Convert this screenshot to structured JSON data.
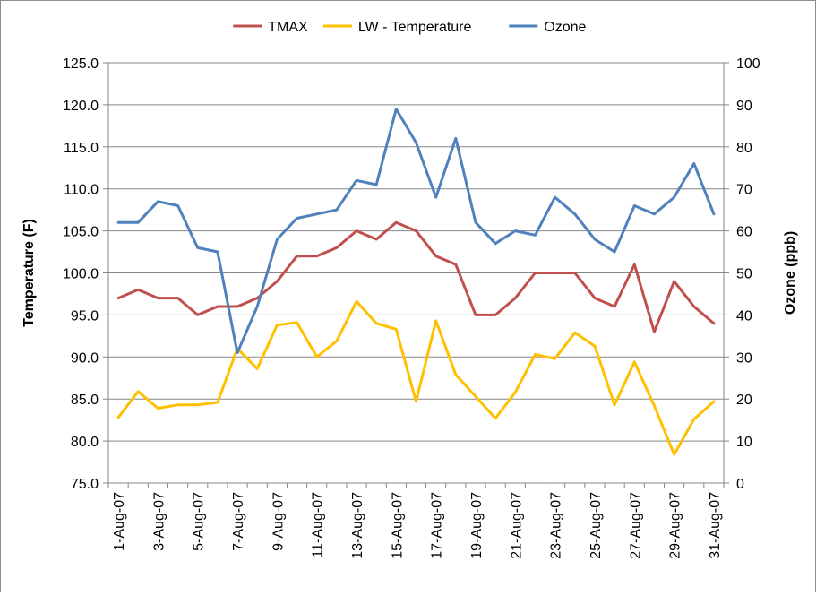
{
  "chart_data": {
    "type": "line",
    "title": "",
    "x": [
      "1-Aug-07",
      "2-Aug-07",
      "3-Aug-07",
      "4-Aug-07",
      "5-Aug-07",
      "6-Aug-07",
      "7-Aug-07",
      "8-Aug-07",
      "9-Aug-07",
      "10-Aug-07",
      "11-Aug-07",
      "12-Aug-07",
      "13-Aug-07",
      "14-Aug-07",
      "15-Aug-07",
      "16-Aug-07",
      "17-Aug-07",
      "18-Aug-07",
      "19-Aug-07",
      "20-Aug-07",
      "21-Aug-07",
      "22-Aug-07",
      "23-Aug-07",
      "24-Aug-07",
      "25-Aug-07",
      "26-Aug-07",
      "27-Aug-07",
      "28-Aug-07",
      "29-Aug-07",
      "30-Aug-07",
      "31-Aug-07"
    ],
    "x_tick_labels": [
      "1-Aug-07",
      "3-Aug-07",
      "5-Aug-07",
      "7-Aug-07",
      "9-Aug-07",
      "11-Aug-07",
      "13-Aug-07",
      "15-Aug-07",
      "17-Aug-07",
      "19-Aug-07",
      "21-Aug-07",
      "23-Aug-07",
      "25-Aug-07",
      "27-Aug-07",
      "29-Aug-07",
      "31-Aug-07"
    ],
    "ylabel": "Temperature (F)",
    "y2label": "Ozone (ppb)",
    "ylim": [
      75,
      125
    ],
    "y2lim": [
      0,
      100
    ],
    "y_tick_labels": [
      "75.0",
      "80.0",
      "85.0",
      "90.0",
      "95.0",
      "100.0",
      "105.0",
      "110.0",
      "115.0",
      "120.0",
      "125.0"
    ],
    "y2_tick_labels": [
      "0",
      "10",
      "20",
      "30",
      "40",
      "50",
      "60",
      "70",
      "80",
      "90",
      "100"
    ],
    "legend_position": "top",
    "grid": "horizontal",
    "series": [
      {
        "name": "TMAX",
        "axis": "left",
        "color": "#c0504d",
        "values": [
          97,
          98,
          97,
          97,
          95,
          96,
          96,
          97,
          99,
          102,
          102,
          103,
          105,
          104,
          106,
          105,
          102,
          101,
          95,
          95,
          97,
          100,
          100,
          100,
          97,
          96,
          101,
          93,
          99,
          96,
          94
        ]
      },
      {
        "name": "LW - Temperature",
        "axis": "left",
        "color": "#ffc000",
        "values": [
          82.8,
          85.9,
          83.9,
          84.3,
          84.3,
          84.6,
          91.0,
          88.6,
          93.8,
          94.1,
          90.0,
          91.9,
          96.6,
          94.0,
          93.3,
          84.7,
          94.3,
          87.9,
          85.3,
          82.7,
          85.8,
          90.3,
          89.8,
          92.9,
          91.3,
          84.3,
          89.4,
          84.2,
          78.4,
          82.6,
          84.7
        ]
      },
      {
        "name": "Ozone",
        "axis": "right",
        "color": "#4f81bd",
        "values": [
          62,
          62,
          67,
          66,
          56,
          55,
          31,
          42,
          58,
          63,
          64,
          65,
          72,
          71,
          89,
          81,
          68,
          82,
          62,
          57,
          60,
          59,
          68,
          64,
          58,
          55,
          66,
          64,
          68,
          76,
          64
        ]
      }
    ]
  }
}
